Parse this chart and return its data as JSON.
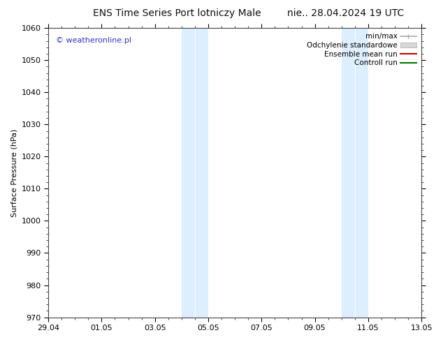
{
  "title_left": "ENS Time Series Port lotniczy Male",
  "title_right": "nie.. 28.04.2024 19 UTC",
  "ylabel": "Surface Pressure (hPa)",
  "ylim": [
    970,
    1060
  ],
  "yticks": [
    970,
    980,
    990,
    1000,
    1010,
    1020,
    1030,
    1040,
    1050,
    1060
  ],
  "xtick_labels": [
    "29.04",
    "01.05",
    "03.05",
    "05.05",
    "07.05",
    "09.05",
    "11.05",
    "13.05"
  ],
  "xtick_positions": [
    0,
    2,
    4,
    6,
    8,
    10,
    12,
    14
  ],
  "xlim": [
    0,
    14
  ],
  "shaded_bands": [
    {
      "x_start": 5,
      "x_end": 5.5
    },
    {
      "x_start": 5.5,
      "x_end": 6
    },
    {
      "x_start": 11,
      "x_end": 11.5
    },
    {
      "x_start": 11.5,
      "x_end": 12
    }
  ],
  "shaded_color": "#ddeeff",
  "watermark": "© weatheronline.pl",
  "watermark_color": "#3333cc",
  "bg_color": "#ffffff",
  "tick_label_fontsize": 8,
  "title_fontsize": 10,
  "ylabel_fontsize": 8,
  "legend_labels": [
    "min/max",
    "Odchylenie standardowe",
    "Ensemble mean run",
    "Controll run"
  ],
  "legend_colors": [
    "#aaaaaa",
    "#cccccc",
    "#cc0000",
    "#007700"
  ],
  "spine_color": "#444444"
}
